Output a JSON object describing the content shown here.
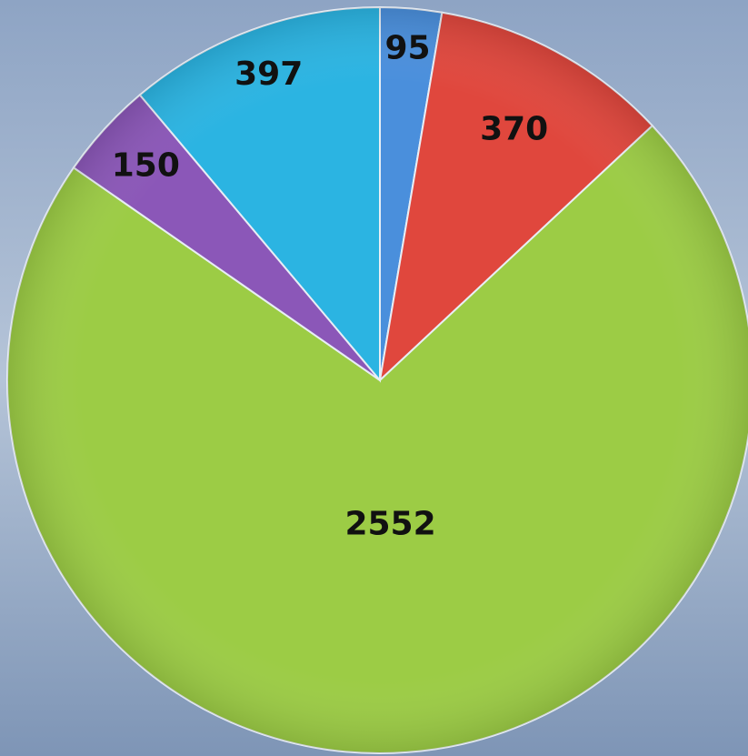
{
  "chart_data": {
    "type": "pie",
    "values": [
      95,
      370,
      2552,
      150,
      397
    ],
    "colors": [
      "#4a8fdc",
      "#e0473d",
      "#9ccc45",
      "#8b57b8",
      "#2bb4e2"
    ],
    "start_angle": 0,
    "direction": "clockwise"
  }
}
